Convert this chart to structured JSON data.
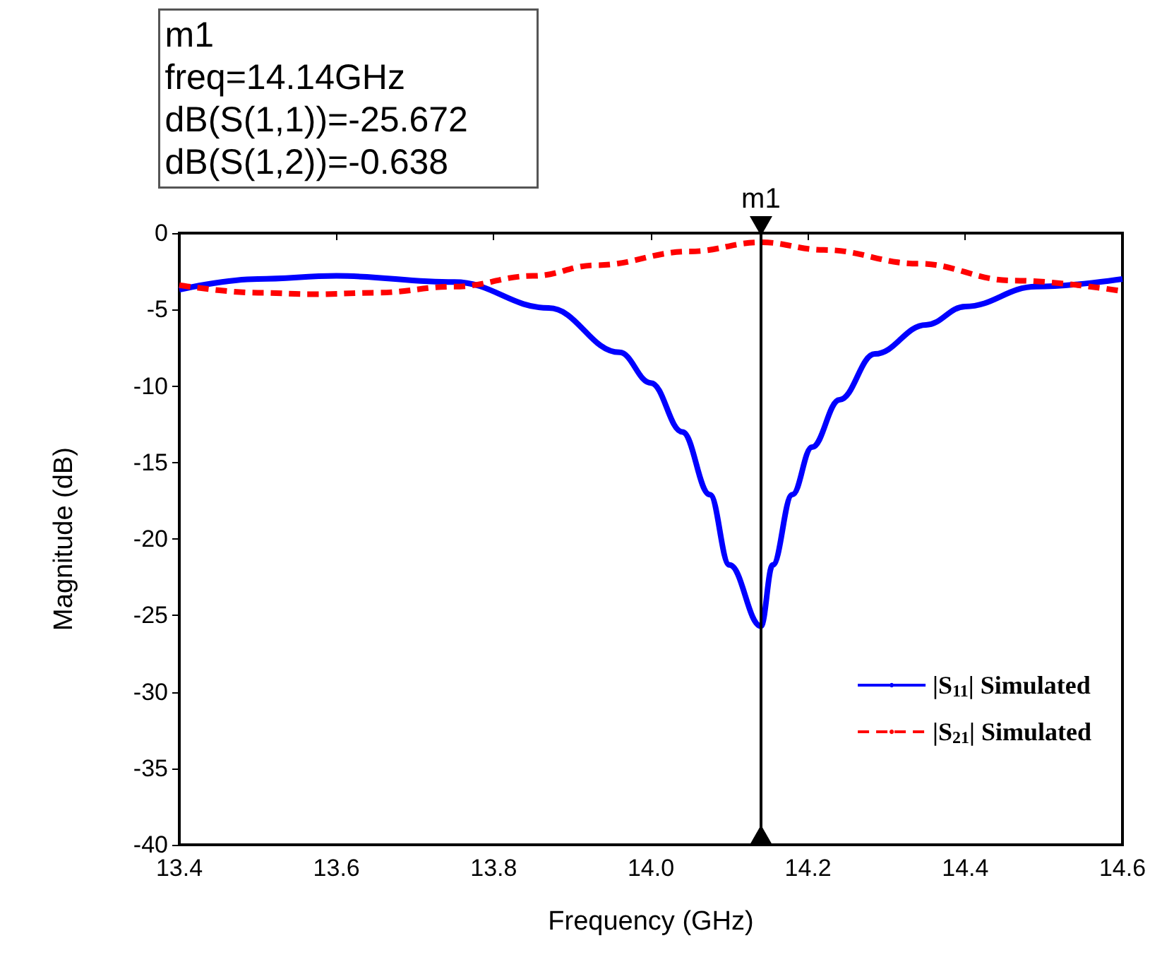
{
  "chart_data": {
    "type": "line",
    "xlabel": "Frequency (GHz)",
    "ylabel": "Magnitude (dB)",
    "xlim": [
      13.4,
      14.6
    ],
    "xticks": [
      13.4,
      13.6,
      13.8,
      {
        "value": 14,
        "label": "14.0"
      },
      14.2,
      14.4,
      14.6
    ],
    "ylim": [
      -40,
      0
    ],
    "yticks": [
      0,
      -5,
      -10,
      -15,
      -20,
      -25,
      -30,
      -35,
      -40
    ],
    "grid": false,
    "legend": "bottom right",
    "marker": "none",
    "annotations": [
      "m1",
      "freq=14.14GHz",
      "dB(S(1,1))=-25.672",
      "dB(S(1,2))=-0.638"
    ],
    "ref_lines": [
      {
        "axis": "x",
        "value": 14.14,
        "label": "m1",
        "color": "#000000"
      }
    ],
    "series": [
      {
        "name": "|S$_{11}$| Simulated",
        "color": "#0000ff",
        "line_style": "solid",
        "x": [
          13.4,
          13.5,
          13.6,
          13.75,
          13.87,
          13.96,
          14.0,
          14.04,
          14.075,
          14.1,
          14.14,
          14.155,
          14.18,
          14.205,
          14.24,
          14.285,
          14.35,
          14.4,
          14.49,
          14.6
        ],
        "values": [
          -3.7,
          -3.0,
          -2.8,
          -3.2,
          -4.9,
          -7.8,
          -9.8,
          -13.0,
          -17.1,
          -21.7,
          -25.7,
          -21.7,
          -17.1,
          -14.0,
          -10.9,
          -7.9,
          -6.0,
          -4.8,
          -3.5,
          -3.0
        ]
      },
      {
        "name": "|S$_{21}$| Simulated",
        "color": "#ff0000",
        "line_style": "dashed",
        "x": [
          13.4,
          13.5,
          13.57,
          13.65,
          13.75,
          13.85,
          13.93,
          14.05,
          14.14,
          14.22,
          14.34,
          14.46,
          14.6
        ],
        "values": [
          -3.4,
          -3.9,
          -4.0,
          -3.9,
          -3.5,
          -2.8,
          -2.1,
          -1.2,
          -0.6,
          -1.1,
          -2.0,
          -3.1,
          -3.8
        ]
      }
    ]
  }
}
